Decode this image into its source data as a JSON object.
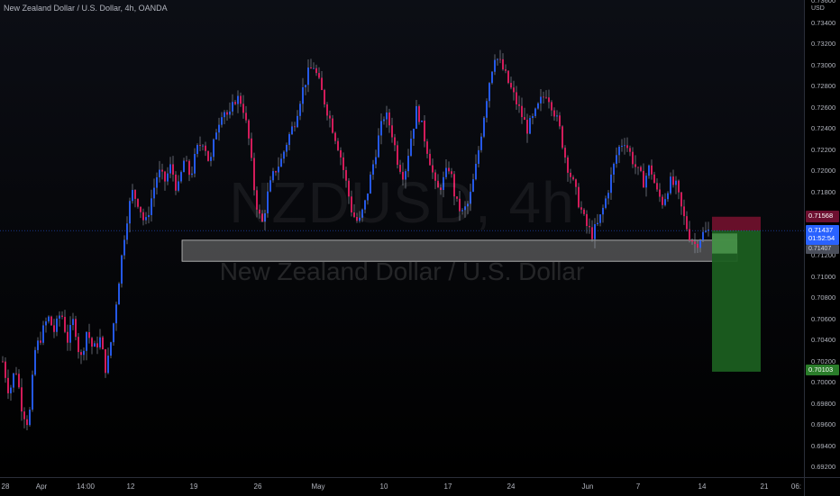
{
  "header": {
    "symbol_title": "New Zealand Dollar / U.S. Dollar, 4h, OANDA"
  },
  "watermark": {
    "symbol": "NZDUSD, 4h",
    "name": "New Zealand Dollar / U.S. Dollar"
  },
  "price_axis": {
    "currency": "USD",
    "ticks": [
      "0.73400",
      "0.73200",
      "0.73000",
      "0.72800",
      "0.72600",
      "0.72400",
      "0.72200",
      "0.72000",
      "0.71800",
      "0.71200",
      "0.71000",
      "0.70800",
      "0.70600",
      "0.70400",
      "0.70200",
      "0.70000",
      "0.69800",
      "0.69600",
      "0.69400",
      "0.69200"
    ],
    "top_partial": "0.73600"
  },
  "price_labels": {
    "stop": "0.71568",
    "entry": "0.71437",
    "countdown": "01:52:54",
    "target_line": "0.71407",
    "target": "0.70103"
  },
  "time_axis": {
    "ticks": [
      "28",
      "Apr",
      "14:00",
      "12",
      "19",
      "26",
      "May",
      "10",
      "17",
      "24",
      "Jun",
      "7",
      "14",
      "21",
      "06:"
    ]
  },
  "colors": {
    "background": "#000000",
    "bull_candle": "#2962ff",
    "bear_candle": "#e91e63",
    "zone": "#808080",
    "stop_zone": "#7a1230",
    "target_zone": "#1b5e20",
    "entry_label": "#2962ff"
  },
  "chart_data": {
    "type": "candlestick",
    "symbol": "NZDUSD",
    "interval": "4h",
    "ylim": [
      0.692,
      0.736
    ],
    "close_path": [
      0.702,
      0.699,
      0.7015,
      0.6975,
      0.696,
      0.703,
      0.7045,
      0.7062,
      0.7048,
      0.7068,
      0.704,
      0.706,
      0.702,
      0.705,
      0.703,
      0.7042,
      0.701,
      0.705,
      0.71,
      0.715,
      0.718,
      0.717,
      0.7148,
      0.7175,
      0.72,
      0.719,
      0.7205,
      0.718,
      0.721,
      0.7195,
      0.722,
      0.723,
      0.7205,
      0.724,
      0.726,
      0.725,
      0.727,
      0.7265,
      0.723,
      0.7175,
      0.7148,
      0.718,
      0.72,
      0.721,
      0.723,
      0.7245,
      0.727,
      0.729,
      0.73,
      0.728,
      0.726,
      0.724,
      0.722,
      0.719,
      0.716,
      0.715,
      0.717,
      0.72,
      0.723,
      0.7255,
      0.724,
      0.721,
      0.7195,
      0.723,
      0.726,
      0.7235,
      0.721,
      0.718,
      0.719,
      0.7205,
      0.717,
      0.716,
      0.717,
      0.72,
      0.724,
      0.728,
      0.731,
      0.73,
      0.7285,
      0.727,
      0.7255,
      0.724,
      0.725,
      0.7265,
      0.7275,
      0.726,
      0.724,
      0.721,
      0.719,
      0.717,
      0.715,
      0.714,
      0.715,
      0.717,
      0.7195,
      0.722,
      0.723,
      0.7215,
      0.72,
      0.719,
      0.7205,
      0.718,
      0.717,
      0.719,
      0.7185,
      0.716,
      0.714,
      0.713,
      0.714,
      0.7143
    ],
    "support_zone": [
      0.71147,
      0.71346
    ],
    "position": {
      "stop": 0.71568,
      "entry": 0.71437,
      "target": 0.70103
    }
  }
}
